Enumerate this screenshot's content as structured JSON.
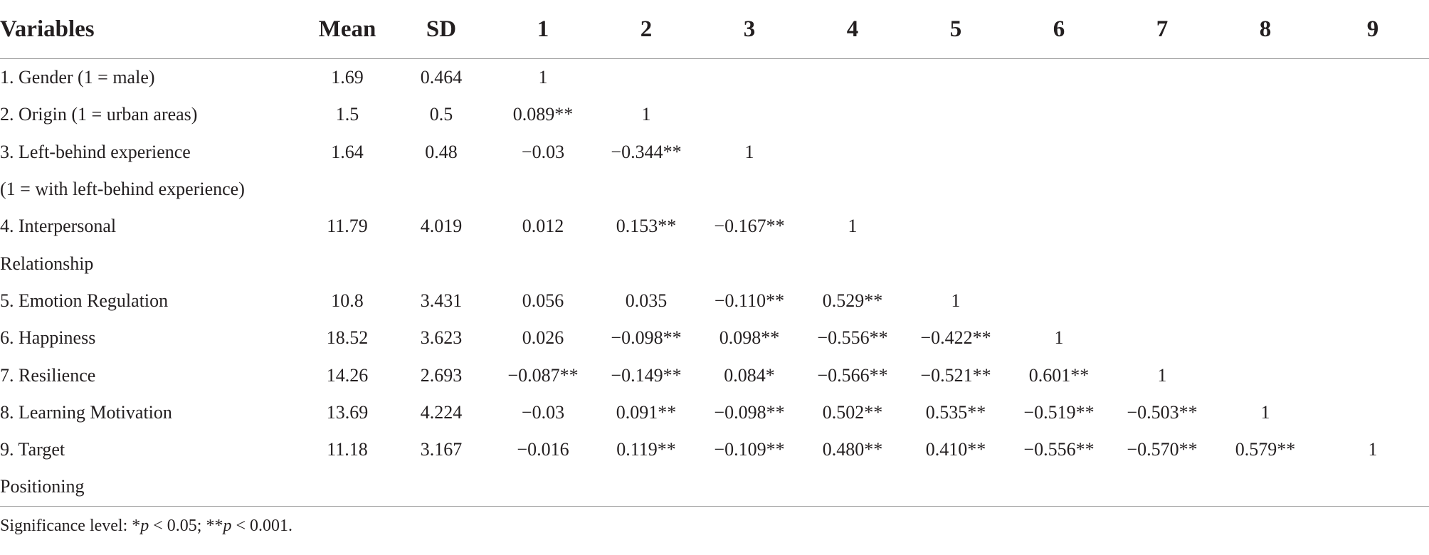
{
  "table": {
    "headers": [
      "Variables",
      "Mean",
      "SD",
      "1",
      "2",
      "3",
      "4",
      "5",
      "6",
      "7",
      "8",
      "9"
    ],
    "rows": [
      {
        "cells": [
          "1. Gender (1 = male)",
          "1.69",
          "0.464",
          "1",
          "",
          "",
          "",
          "",
          "",
          "",
          "",
          ""
        ]
      },
      {
        "cells": [
          "2. Origin (1 = urban areas)",
          "1.5",
          "0.5",
          "0.089**",
          "1",
          "",
          "",
          "",
          "",
          "",
          "",
          ""
        ]
      },
      {
        "cells": [
          "3. Left-behind experience",
          "1.64",
          "0.48",
          "−0.03",
          "−0.344**",
          "1",
          "",
          "",
          "",
          "",
          "",
          ""
        ]
      },
      {
        "cells": [
          "(1 = with left-behind experience)",
          "",
          "",
          "",
          "",
          "",
          "",
          "",
          "",
          "",
          "",
          ""
        ]
      },
      {
        "cells": [
          "4. Interpersonal",
          "11.79",
          "4.019",
          "0.012",
          "0.153**",
          "−0.167**",
          "1",
          "",
          "",
          "",
          "",
          ""
        ]
      },
      {
        "cells": [
          "Relationship",
          "",
          "",
          "",
          "",
          "",
          "",
          "",
          "",
          "",
          "",
          ""
        ]
      },
      {
        "cells": [
          "5. Emotion Regulation",
          "10.8",
          "3.431",
          "0.056",
          "0.035",
          "−0.110**",
          "0.529**",
          "1",
          "",
          "",
          "",
          ""
        ]
      },
      {
        "cells": [
          "6. Happiness",
          "18.52",
          "3.623",
          "0.026",
          "−0.098**",
          "0.098**",
          "−0.556**",
          "−0.422**",
          "1",
          "",
          "",
          ""
        ]
      },
      {
        "cells": [
          "7. Resilience",
          "14.26",
          "2.693",
          "−0.087**",
          "−0.149**",
          "0.084*",
          "−0.566**",
          "−0.521**",
          "0.601**",
          "1",
          "",
          ""
        ]
      },
      {
        "cells": [
          "8. Learning Motivation",
          "13.69",
          "4.224",
          "−0.03",
          "0.091**",
          "−0.098**",
          "0.502**",
          "0.535**",
          "−0.519**",
          "−0.503**",
          "1",
          ""
        ]
      },
      {
        "cells": [
          "9. Target",
          "11.18",
          "3.167",
          "−0.016",
          "0.119**",
          "−0.109**",
          "0.480**",
          "0.410**",
          "−0.556**",
          "−0.570**",
          "0.579**",
          "1"
        ]
      },
      {
        "cells": [
          "Positioning",
          "",
          "",
          "",
          "",
          "",
          "",
          "",
          "",
          "",
          "",
          ""
        ]
      }
    ]
  },
  "note": {
    "prefix": "Significance level: *",
    "p1": "p",
    "mid": " < 0.05; **",
    "p2": "p",
    "suffix": " < 0.001."
  }
}
